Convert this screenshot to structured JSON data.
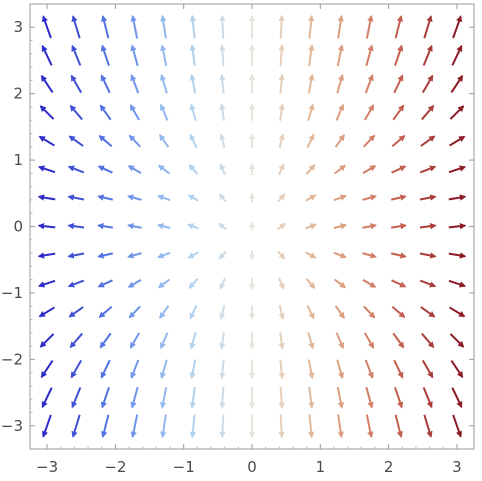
{
  "chart_data": {
    "type": "vector-field",
    "title": "",
    "xlabel": "",
    "ylabel": "",
    "xlim": [
      -3.25,
      3.25
    ],
    "ylim": [
      -3.35,
      3.35
    ],
    "x_ticks": [
      -3,
      -2,
      -1,
      0,
      1,
      2,
      3
    ],
    "y_ticks": [
      -3,
      -2,
      -1,
      0,
      1,
      2,
      3
    ],
    "x_tick_labels": [
      "−3",
      "−2",
      "−1",
      "0",
      "1",
      "2",
      "3"
    ],
    "y_tick_labels": [
      "−3",
      "−2",
      "−1",
      "0",
      "1",
      "2",
      "3"
    ],
    "grid": false,
    "field": {
      "grid_points_per_axis": 15,
      "range": [
        -3,
        3
      ],
      "vector": [
        "x",
        "y^2 - sign(y)*... (direction: away from origin, upward above y=0, downward below)"
      ],
      "color_by": "x",
      "colormap": [
        "#2d2bc7",
        "#5b7fe6",
        "#a9cff0",
        "#e8e4dc",
        "#e0b28f",
        "#cd6b57",
        "#8c1a24"
      ]
    }
  }
}
